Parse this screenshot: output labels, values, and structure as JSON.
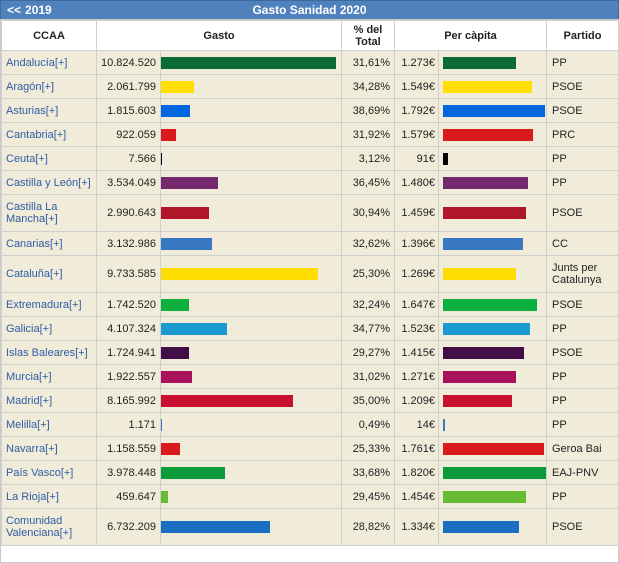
{
  "header": {
    "prev_label": "2019",
    "prev_arrows": "<<",
    "title": "Gasto Sanidad 2020"
  },
  "columns": {
    "ccaa": "CCAA",
    "gasto": "Gasto",
    "pct_line1": "% del",
    "pct_line2": "Total",
    "percapita": "Per càpita",
    "partido": "Partido"
  },
  "chart_data": {
    "type": "table",
    "max_gasto": 10824520,
    "max_percapita": 1820,
    "rows": [
      {
        "ccaa": "Andalucía[+]",
        "gasto": "10.824.520",
        "gasto_value": 10824520,
        "pct": "31,61%",
        "percapita": "1.273€",
        "percapita_value": 1273,
        "partido": "PP",
        "color": "#0a6b34"
      },
      {
        "ccaa": "Aragón[+]",
        "gasto": "2.061.799",
        "gasto_value": 2061799,
        "pct": "34,28%",
        "percapita": "1.549€",
        "percapita_value": 1549,
        "partido": "PSOE",
        "color": "#ffe000"
      },
      {
        "ccaa": "Asturias[+]",
        "gasto": "1.815.603",
        "gasto_value": 1815603,
        "pct": "38,69%",
        "percapita": "1.792€",
        "percapita_value": 1792,
        "partido": "PSOE",
        "color": "#0066dd"
      },
      {
        "ccaa": "Cantabria[+]",
        "gasto": "922.059",
        "gasto_value": 922059,
        "pct": "31,92%",
        "percapita": "1.579€",
        "percapita_value": 1579,
        "partido": "PRC",
        "color": "#d91a1a"
      },
      {
        "ccaa": "Ceuta[+]",
        "gasto": "7.566",
        "gasto_value": 7566,
        "pct": "3,12%",
        "percapita": "91€",
        "percapita_value": 91,
        "partido": "PP",
        "color": "#000000"
      },
      {
        "ccaa": "Castilla y León[+]",
        "gasto": "3.534.049",
        "gasto_value": 3534049,
        "pct": "36,45%",
        "percapita": "1.480€",
        "percapita_value": 1480,
        "partido": "PP",
        "color": "#74296c"
      },
      {
        "ccaa": "Castilla La Mancha[+]",
        "gasto": "2.990.643",
        "gasto_value": 2990643,
        "pct": "30,94%",
        "percapita": "1.459€",
        "percapita_value": 1459,
        "partido": "PSOE",
        "color": "#b0162a",
        "tall": true
      },
      {
        "ccaa": "Canarias[+]",
        "gasto": "3.132.986",
        "gasto_value": 3132986,
        "pct": "32,62%",
        "percapita": "1.396€",
        "percapita_value": 1396,
        "partido": "CC",
        "color": "#3877c2"
      },
      {
        "ccaa": "Cataluña[+]",
        "gasto": "9.733.585",
        "gasto_value": 9733585,
        "pct": "25,30%",
        "percapita": "1.269€",
        "percapita_value": 1269,
        "partido": "Junts per Catalunya",
        "color": "#ffdd00",
        "tall": true
      },
      {
        "ccaa": "Extremadura[+]",
        "gasto": "1.742.520",
        "gasto_value": 1742520,
        "pct": "32,24%",
        "percapita": "1.647€",
        "percapita_value": 1647,
        "partido": "PSOE",
        "color": "#0db03f"
      },
      {
        "ccaa": "Galicia[+]",
        "gasto": "4.107.324",
        "gasto_value": 4107324,
        "pct": "34,77%",
        "percapita": "1.523€",
        "percapita_value": 1523,
        "partido": "PP",
        "color": "#1a9bd0"
      },
      {
        "ccaa": "Islas Baleares[+]",
        "gasto": "1.724.941",
        "gasto_value": 1724941,
        "pct": "29,27%",
        "percapita": "1.415€",
        "percapita_value": 1415,
        "partido": "PSOE",
        "color": "#420e47"
      },
      {
        "ccaa": "Murcia[+]",
        "gasto": "1.922.557",
        "gasto_value": 1922557,
        "pct": "31,02%",
        "percapita": "1.271€",
        "percapita_value": 1271,
        "partido": "PP",
        "color": "#a8125c"
      },
      {
        "ccaa": "Madrid[+]",
        "gasto": "8.165.992",
        "gasto_value": 8165992,
        "pct": "35,00%",
        "percapita": "1.209€",
        "percapita_value": 1209,
        "partido": "PP",
        "color": "#c8102e"
      },
      {
        "ccaa": "Melilla[+]",
        "gasto": "1.171",
        "gasto_value": 1171,
        "pct": "0,49%",
        "percapita": "14€",
        "percapita_value": 14,
        "partido": "PP",
        "color": "#3877c2"
      },
      {
        "ccaa": "Navarra[+]",
        "gasto": "1.158.559",
        "gasto_value": 1158559,
        "pct": "25,33%",
        "percapita": "1.761€",
        "percapita_value": 1761,
        "partido": "Geroa Bai",
        "color": "#d91a1a"
      },
      {
        "ccaa": "País Vasco[+]",
        "gasto": "3.978.448",
        "gasto_value": 3978448,
        "pct": "33,68%",
        "percapita": "1.820€",
        "percapita_value": 1820,
        "partido": "EAJ-PNV",
        "color": "#0a9a3a"
      },
      {
        "ccaa": "La Rioja[+]",
        "gasto": "459.647",
        "gasto_value": 459647,
        "pct": "29,45%",
        "percapita": "1.454€",
        "percapita_value": 1454,
        "partido": "PP",
        "color": "#66bb33"
      },
      {
        "ccaa": "Comunidad Valenciana[+]",
        "gasto": "6.732.209",
        "gasto_value": 6732209,
        "pct": "28,82%",
        "percapita": "1.334€",
        "percapita_value": 1334,
        "partido": "PSOE",
        "color": "#1a6fc2",
        "tall": true
      }
    ]
  }
}
